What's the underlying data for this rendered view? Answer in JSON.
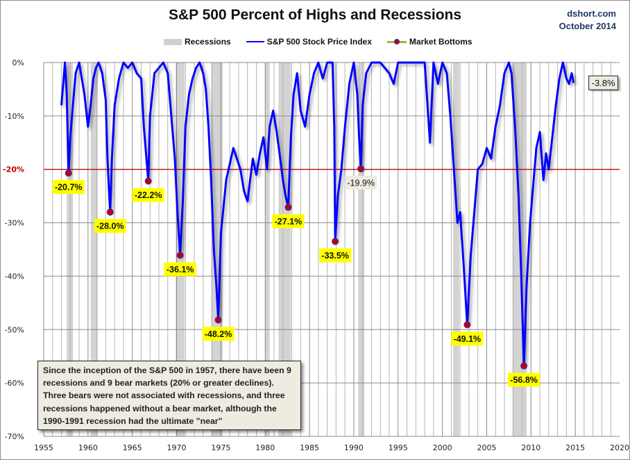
{
  "header": {
    "title": "S&P 500 Percent of Highs and Recessions",
    "source_line1": "dshort.com",
    "source_line2": "October 2014"
  },
  "legend": {
    "recessions": "Recessions",
    "index": "S&P 500 Stock Price Index",
    "bottoms": "Market Bottoms"
  },
  "annotation": {
    "text": "Since the inception of the S&P 500  in 1957,  there have been 9 recessions and 9 bear markets (20% or greater declines). Three bears were not associated with recessions, and three recessions happened without a bear market, although the 1990-1991  recession had the ultimate \"near\""
  },
  "colors": {
    "line": "#0000ff",
    "recession": "#d3d3d3",
    "threshold": "#c00000",
    "bottom_label_bg": "#ffff00",
    "neutral_label_bg": "#eeebe1",
    "marker": "#c00000"
  },
  "chart_data": {
    "type": "line",
    "title": "S&P 500 Percent of Highs and Recessions",
    "xlabel": "",
    "ylabel": "",
    "xlim": [
      1955,
      2020
    ],
    "ylim": [
      -70,
      0
    ],
    "x_ticks": [
      "1955",
      "1960",
      "1965",
      "1970",
      "1975",
      "1980",
      "1985",
      "1990",
      "1995",
      "2000",
      "2005",
      "2010",
      "2015",
      "2020"
    ],
    "y_ticks": [
      "0%",
      "-10%",
      "-20%",
      "-30%",
      "-40%",
      "-50%",
      "-60%",
      "-70%"
    ],
    "grid": true,
    "legend_position": "top-center",
    "threshold": {
      "value": -20,
      "label": "-20%"
    },
    "recessions": [
      [
        1957.6,
        1958.3
      ],
      [
        1960.3,
        1961.1
      ],
      [
        1969.9,
        1970.9
      ],
      [
        1973.9,
        1975.2
      ],
      [
        1980.0,
        1980.5
      ],
      [
        1981.5,
        1982.9
      ],
      [
        1990.5,
        1991.2
      ],
      [
        2001.2,
        2001.9
      ],
      [
        2007.9,
        2009.5
      ]
    ],
    "series": [
      {
        "name": "S&P 500 Stock Price Index",
        "x": [
          1957.0,
          1957.2,
          1957.4,
          1957.6,
          1957.8,
          1958.0,
          1958.3,
          1958.6,
          1959.0,
          1959.3,
          1959.6,
          1960.0,
          1960.3,
          1960.6,
          1960.9,
          1961.2,
          1961.6,
          1962.0,
          1962.2,
          1962.4,
          1962.5,
          1962.7,
          1963.0,
          1963.5,
          1964.0,
          1964.5,
          1965.0,
          1965.5,
          1966.0,
          1966.3,
          1966.6,
          1966.8,
          1967.0,
          1967.5,
          1968.0,
          1968.5,
          1969.0,
          1969.4,
          1969.8,
          1970.1,
          1970.4,
          1970.7,
          1971.0,
          1971.4,
          1971.8,
          1972.2,
          1972.6,
          1973.0,
          1973.3,
          1973.6,
          1973.9,
          1974.2,
          1974.5,
          1974.7,
          1975.0,
          1975.3,
          1975.6,
          1976.0,
          1976.4,
          1976.8,
          1977.2,
          1977.6,
          1978.0,
          1978.3,
          1978.6,
          1979.0,
          1979.4,
          1979.8,
          1980.2,
          1980.5,
          1980.9,
          1981.3,
          1981.7,
          1982.0,
          1982.3,
          1982.6,
          1982.9,
          1983.2,
          1983.6,
          1984.0,
          1984.5,
          1985.0,
          1985.5,
          1986.0,
          1986.5,
          1987.0,
          1987.6,
          1987.8,
          1987.9,
          1988.2,
          1988.6,
          1989.0,
          1989.5,
          1990.0,
          1990.4,
          1990.6,
          1990.8,
          1991.0,
          1991.4,
          1992.0,
          1993.0,
          1994.0,
          1994.5,
          1995.0,
          1996.0,
          1997.0,
          1998.0,
          1998.6,
          1999.0,
          1999.5,
          2000.0,
          2000.5,
          2000.9,
          2001.3,
          2001.7,
          2002.0,
          2002.4,
          2002.8,
          2003.2,
          2003.6,
          2004.0,
          2004.5,
          2005.0,
          2005.5,
          2006.0,
          2006.5,
          2007.0,
          2007.5,
          2007.8,
          2008.2,
          2008.6,
          2008.9,
          2009.2,
          2009.5,
          2009.9,
          2010.3,
          2010.6,
          2011.0,
          2011.4,
          2011.7,
          2012.0,
          2012.4,
          2012.8,
          2013.2,
          2013.6,
          2014.0,
          2014.3,
          2014.6,
          2014.8
        ],
        "y": [
          -8,
          -4,
          0,
          -6,
          -20.7,
          -14,
          -8,
          -2,
          0,
          -3,
          -6,
          -12,
          -8,
          -3,
          -1,
          0,
          -2,
          -7,
          -18,
          -25,
          -28,
          -18,
          -8,
          -3,
          0,
          -1,
          0,
          -2,
          -3,
          -12,
          -18,
          -22.2,
          -10,
          -2,
          -1,
          0,
          -2,
          -10,
          -18,
          -28,
          -36.1,
          -26,
          -12,
          -6,
          -3,
          -1,
          0,
          -2,
          -5,
          -12,
          -22,
          -35,
          -42,
          -48.2,
          -32,
          -27,
          -22,
          -19,
          -16,
          -18,
          -20,
          -24,
          -26,
          -22,
          -18,
          -21,
          -17,
          -14,
          -20,
          -12,
          -9,
          -13,
          -18,
          -22,
          -25,
          -27.1,
          -14,
          -6,
          -2,
          -9,
          -12,
          -6,
          -2,
          0,
          -3,
          0,
          0,
          -12,
          -33.5,
          -25,
          -20,
          -12,
          -4,
          0,
          -6,
          -14,
          -19.9,
          -8,
          -2,
          0,
          0,
          -2,
          -4,
          0,
          0,
          0,
          0,
          -15,
          0,
          -4,
          0,
          -2,
          -10,
          -20,
          -30,
          -28,
          -38,
          -49.1,
          -36,
          -28,
          -20,
          -19,
          -16,
          -18,
          -12,
          -8,
          -2,
          0,
          -2,
          -12,
          -25,
          -40,
          -56.8,
          -42,
          -30,
          -22,
          -16,
          -13,
          -22,
          -17,
          -20,
          -14,
          -8,
          -3,
          0,
          -3,
          -4,
          -2,
          -3.8
        ]
      }
    ],
    "market_bottoms": [
      {
        "x": 1957.8,
        "y": -20.7,
        "label": "-20.7%"
      },
      {
        "x": 1962.5,
        "y": -28.0,
        "label": "-28.0%"
      },
      {
        "x": 1966.8,
        "y": -22.2,
        "label": "-22.2%"
      },
      {
        "x": 1970.4,
        "y": -36.1,
        "label": "-36.1%"
      },
      {
        "x": 1974.7,
        "y": -48.2,
        "label": "-48.2%"
      },
      {
        "x": 1982.6,
        "y": -27.1,
        "label": "-27.1%"
      },
      {
        "x": 1987.9,
        "y": -33.5,
        "label": "-33.5%"
      },
      {
        "x": 1990.8,
        "y": -19.9,
        "label": "-19.9%",
        "style": "neutral"
      },
      {
        "x": 2002.8,
        "y": -49.1,
        "label": "-49.1%"
      },
      {
        "x": 2009.2,
        "y": -56.8,
        "label": "-56.8%"
      }
    ],
    "current": {
      "x": 2014.8,
      "y": -3.8,
      "label": "-3.8%"
    }
  }
}
